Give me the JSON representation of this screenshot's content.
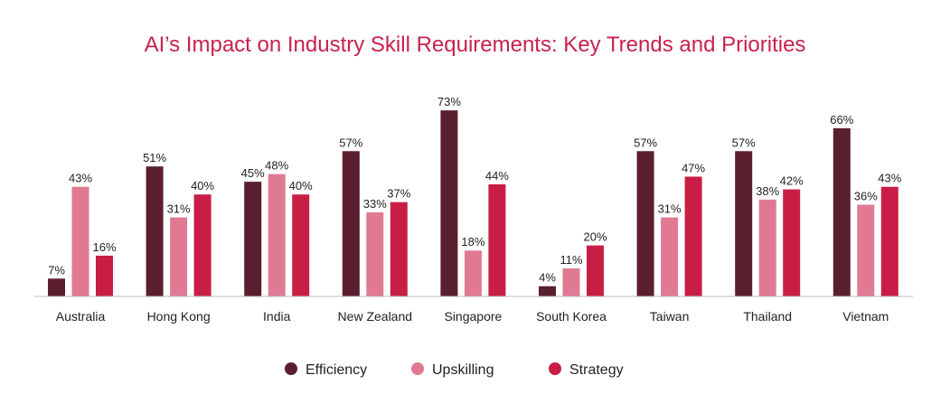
{
  "chart_data": {
    "type": "bar",
    "title": "AI’s Impact on Industry Skill Requirements: Key Trends and Priorities",
    "categories": [
      "Australia",
      "Hong Kong",
      "India",
      "New Zealand",
      "Singapore",
      "South Korea",
      "Taiwan",
      "Thailand",
      "Vietnam"
    ],
    "series": [
      {
        "name": "Efficiency",
        "color": "#5a1f2e",
        "values": [
          7,
          51,
          45,
          57,
          73,
          4,
          57,
          57,
          66
        ]
      },
      {
        "name": "Upskilling",
        "color": "#e07a93",
        "values": [
          43,
          31,
          48,
          33,
          18,
          11,
          31,
          38,
          36
        ]
      },
      {
        "name": "Strategy",
        "color": "#c81e45",
        "values": [
          16,
          40,
          40,
          37,
          44,
          20,
          47,
          42,
          43
        ]
      }
    ],
    "value_suffix": "%",
    "ylim": [
      0,
      73
    ],
    "legend_position": "bottom-center",
    "grid": false
  }
}
